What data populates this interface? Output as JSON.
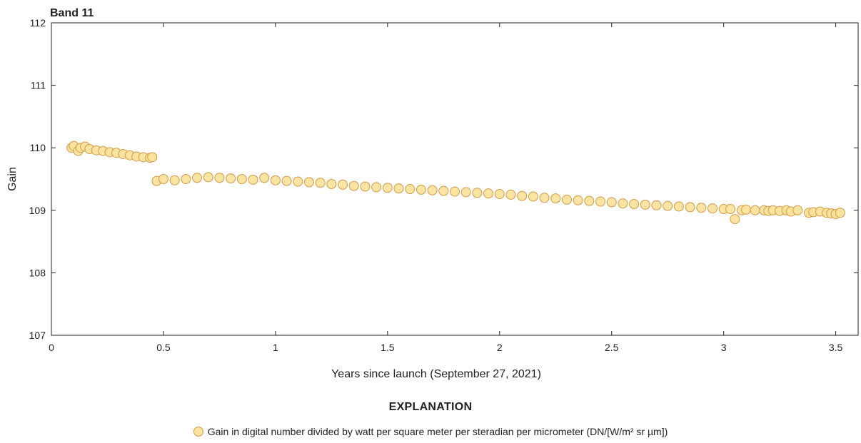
{
  "chart_data": {
    "type": "scatter",
    "title": "Band 11",
    "xlabel": "Years since launch (September 27, 2021)",
    "ylabel": "Gain",
    "xlim": [
      0,
      3.6
    ],
    "ylim": [
      107,
      112
    ],
    "xticks": [
      "0",
      "0.5",
      "1",
      "1.5",
      "2",
      "2.5",
      "3",
      "3.5"
    ],
    "yticks": [
      "107",
      "108",
      "109",
      "110",
      "111",
      "112"
    ],
    "grid": false,
    "marker_fill": "#fbe39c",
    "marker_edge": "#d39a45",
    "series": [
      {
        "name": "Gain in digital number divided by watt per square meter per steradian per micrometer (DN/[W/m² sr µm])",
        "x": [
          0.09,
          0.1,
          0.12,
          0.13,
          0.15,
          0.17,
          0.2,
          0.23,
          0.26,
          0.29,
          0.32,
          0.35,
          0.38,
          0.41,
          0.44,
          0.45,
          0.47,
          0.5,
          0.55,
          0.6,
          0.65,
          0.7,
          0.75,
          0.8,
          0.85,
          0.9,
          0.95,
          1.0,
          1.05,
          1.1,
          1.15,
          1.2,
          1.25,
          1.3,
          1.35,
          1.4,
          1.45,
          1.5,
          1.55,
          1.6,
          1.65,
          1.7,
          1.75,
          1.8,
          1.85,
          1.9,
          1.95,
          2.0,
          2.05,
          2.1,
          2.15,
          2.2,
          2.25,
          2.3,
          2.35,
          2.4,
          2.45,
          2.5,
          2.55,
          2.6,
          2.65,
          2.7,
          2.75,
          2.8,
          2.85,
          2.9,
          2.95,
          3.0,
          3.03,
          3.05,
          3.08,
          3.1,
          3.14,
          3.18,
          3.2,
          3.22,
          3.25,
          3.28,
          3.3,
          3.33,
          3.38,
          3.4,
          3.43,
          3.46,
          3.48,
          3.5,
          3.52
        ],
        "y": [
          110.0,
          110.03,
          109.95,
          110.0,
          110.02,
          109.98,
          109.96,
          109.95,
          109.93,
          109.92,
          109.9,
          109.88,
          109.86,
          109.85,
          109.84,
          109.85,
          109.47,
          109.5,
          109.48,
          109.5,
          109.52,
          109.53,
          109.52,
          109.51,
          109.5,
          109.49,
          109.52,
          109.48,
          109.47,
          109.46,
          109.45,
          109.44,
          109.42,
          109.41,
          109.39,
          109.38,
          109.37,
          109.36,
          109.35,
          109.34,
          109.33,
          109.32,
          109.31,
          109.3,
          109.29,
          109.28,
          109.27,
          109.26,
          109.25,
          109.23,
          109.22,
          109.2,
          109.19,
          109.17,
          109.16,
          109.15,
          109.14,
          109.13,
          109.11,
          109.1,
          109.09,
          109.08,
          109.07,
          109.06,
          109.05,
          109.04,
          109.03,
          109.02,
          109.02,
          108.86,
          109.0,
          109.01,
          109.0,
          109.0,
          108.99,
          109.0,
          108.99,
          109.0,
          108.98,
          109.0,
          108.96,
          108.97,
          108.98,
          108.96,
          108.95,
          108.94,
          108.96
        ]
      }
    ]
  },
  "explanation_label": "EXPLANATION",
  "legend_label": "Gain in digital number divided by watt per square meter per steradian per micrometer (DN/[W/m² sr µm])"
}
